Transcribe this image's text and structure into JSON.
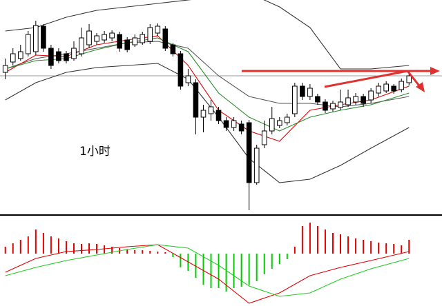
{
  "chart_data": [
    {
      "type": "candlestick",
      "annotation": "1小时",
      "ylim": [
        0,
        310
      ],
      "xlim": [
        -0.7,
        53.7
      ],
      "up_color": "#ffffff",
      "down_color": "#000000",
      "edge_color": "#000000",
      "reference_line": 200,
      "open": [
        205,
        220,
        225,
        232,
        235,
        272,
        240,
        235,
        232,
        225,
        232,
        245,
        250,
        252,
        255,
        260,
        252,
        245,
        248,
        250,
        262,
        268,
        245,
        232,
        190,
        190,
        140,
        145,
        150,
        135,
        125,
        130,
        132,
        45,
        100,
        120,
        128,
        132,
        145,
        185,
        170,
        170,
        162,
        152,
        154,
        158,
        162,
        170,
        165,
        175,
        178,
        185,
        180,
        190
      ],
      "high": [
        225,
        240,
        245,
        265,
        280,
        275,
        245,
        240,
        236,
        250,
        270,
        275,
        262,
        265,
        266,
        264,
        256,
        260,
        264,
        275,
        276,
        272,
        248,
        236,
        210,
        195,
        158,
        165,
        155,
        140,
        140,
        135,
        136,
        100,
        135,
        155,
        140,
        145,
        190,
        190,
        188,
        174,
        166,
        164,
        180,
        180,
        175,
        174,
        182,
        190,
        192,
        188,
        196,
        205
      ],
      "low": [
        195,
        215,
        222,
        228,
        230,
        235,
        210,
        218,
        218,
        222,
        228,
        240,
        245,
        248,
        250,
        235,
        234,
        242,
        245,
        246,
        258,
        236,
        228,
        180,
        185,
        115,
        118,
        135,
        130,
        120,
        120,
        115,
        5,
        42,
        95,
        115,
        124,
        128,
        140,
        165,
        165,
        158,
        146,
        148,
        150,
        155,
        158,
        155,
        160,
        170,
        175,
        174,
        176,
        186
      ],
      "close": [
        215,
        232,
        235,
        260,
        273,
        240,
        215,
        222,
        222,
        240,
        255,
        265,
        258,
        260,
        262,
        240,
        238,
        255,
        260,
        270,
        272,
        240,
        232,
        185,
        200,
        140,
        150,
        155,
        135,
        125,
        135,
        120,
        45,
        95,
        120,
        138,
        135,
        140,
        185,
        170,
        182,
        162,
        150,
        160,
        162,
        168,
        170,
        160,
        178,
        185,
        188,
        178,
        192,
        200
      ],
      "overlays": [
        {
          "name": "boll-upper",
          "color": "#333333",
          "x": [
            0,
            4,
            8,
            12,
            16,
            20,
            24,
            28,
            32,
            36,
            40,
            44,
            48,
            53
          ],
          "values": [
            265,
            270,
            285,
            295,
            300,
            305,
            310,
            315,
            320,
            300,
            270,
            210,
            210,
            215
          ]
        },
        {
          "name": "boll-lower",
          "color": "#333333",
          "x": [
            0,
            4,
            8,
            12,
            16,
            20,
            24,
            28,
            32,
            36,
            40,
            44,
            48,
            53
          ],
          "values": [
            165,
            190,
            205,
            212,
            215,
            218,
            195,
            140,
            80,
            45,
            50,
            70,
            95,
            125
          ]
        },
        {
          "name": "boll-mid",
          "color": "#555555",
          "x": [
            0,
            4,
            8,
            12,
            16,
            20,
            24,
            28,
            32,
            36,
            40,
            44,
            48,
            53
          ],
          "values": [
            210,
            225,
            232,
            240,
            248,
            250,
            240,
            200,
            170,
            160,
            160,
            155,
            160,
            170
          ]
        },
        {
          "name": "ma-fast",
          "color": "#e00000",
          "x": [
            0,
            4,
            8,
            12,
            16,
            20,
            24,
            28,
            32,
            36,
            40,
            44,
            48,
            53
          ],
          "values": [
            205,
            230,
            228,
            245,
            252,
            258,
            215,
            150,
            120,
            105,
            150,
            158,
            165,
            185
          ]
        },
        {
          "name": "ma-slow",
          "color": "#2a8a2a",
          "x": [
            0,
            4,
            8,
            12,
            16,
            20,
            24,
            28,
            32,
            36,
            40,
            44,
            48,
            53
          ],
          "values": [
            210,
            222,
            225,
            238,
            248,
            255,
            235,
            175,
            140,
            120,
            140,
            150,
            158,
            175
          ]
        }
      ]
    },
    {
      "type": "macd",
      "ylim": [
        -76,
        56
      ],
      "xlim": [
        -0.7,
        53.7
      ],
      "pos_color": "#e00000",
      "neg_color": "#00cc00",
      "values": [
        10,
        15,
        20,
        25,
        35,
        30,
        25,
        22,
        18,
        15,
        14,
        15,
        14,
        12,
        10,
        8,
        6,
        5,
        5,
        4,
        3,
        2,
        -5,
        -20,
        -25,
        -35,
        -45,
        -50,
        -50,
        -55,
        -50,
        -48,
        -45,
        -40,
        -30,
        -22,
        -15,
        -8,
        10,
        40,
        45,
        40,
        35,
        30,
        28,
        25,
        22,
        20,
        18,
        16,
        15,
        14,
        12,
        20
      ],
      "lines": [
        {
          "name": "dif",
          "color": "#e00000",
          "x": [
            0,
            4,
            8,
            12,
            16,
            20,
            24,
            28,
            32,
            36,
            40,
            44,
            48,
            53
          ],
          "values": [
            -27,
            -7,
            3,
            6,
            10,
            13,
            -12,
            -37,
            -72,
            -57,
            -32,
            -20,
            -10,
            3
          ]
        },
        {
          "name": "dea",
          "color": "#22cc22",
          "x": [
            0,
            4,
            8,
            12,
            16,
            20,
            24,
            28,
            32,
            36,
            40,
            44,
            48,
            53
          ],
          "values": [
            -32,
            -20,
            -10,
            -2,
            6,
            13,
            8,
            -17,
            -47,
            -62,
            -57,
            -37,
            -22,
            -7
          ]
        }
      ]
    }
  ]
}
